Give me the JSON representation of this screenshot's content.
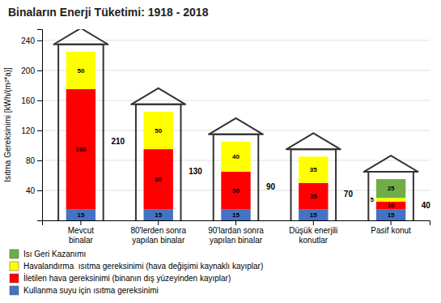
{
  "chart_data": {
    "type": "bar",
    "stacked": true,
    "title": "Binaların Enerji Tüketimi: 1918 - 2018",
    "ylabel": "Isıtma Gereksinimi [kWh/(m²*a)]",
    "categories": [
      "Mevcut\nbinalar",
      "80'lerden sonra\nyapılan binalar",
      "90'lardan sonra\nyapılan binalar",
      "Düşük enerjili\nkonutlar",
      "Pasif konut"
    ],
    "series": [
      {
        "name": "Kullanma suyu için ısıtma gereksinimi",
        "color": "#4472C4",
        "values": [
          15,
          15,
          15,
          15,
          15
        ]
      },
      {
        "name": "İletilen hava gereksinimi (binanın dış yüzeyinden kayıplar)",
        "color": "#FF0000",
        "values": [
          160,
          80,
          50,
          35,
          10
        ]
      },
      {
        "name": "Havalandırma  ısıtma gereksinimi (hava değişimi kaynaklı kayıplar)",
        "color": "#FFFF00",
        "values": [
          50,
          50,
          40,
          35,
          5
        ]
      },
      {
        "name": "Isı Geri Kazanımı",
        "color": "#70AD47",
        "values": [
          0,
          0,
          0,
          0,
          25
        ]
      }
    ],
    "totals": [
      210,
      130,
      90,
      70,
      40
    ],
    "ylim": [
      0,
      255
    ],
    "yticks": [
      40,
      80,
      120,
      160,
      200,
      240
    ],
    "grid": true,
    "data_labels": true,
    "legend": "bottom"
  }
}
